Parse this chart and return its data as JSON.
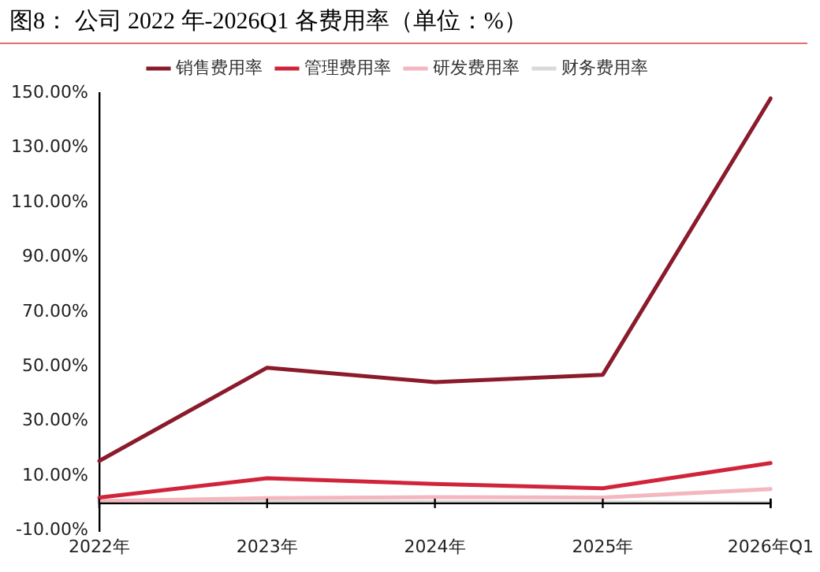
{
  "chart_data": {
    "type": "line",
    "title": "图8：  公司 2022 年-2026Q1 各费用率（单位：%）",
    "categories": [
      "2022年",
      "2023年",
      "2024年",
      "2025年",
      "2026年Q1"
    ],
    "series": [
      {
        "name": "销售费用率",
        "color": "#8b1a2b",
        "values": [
          15.5,
          49.6,
          44.3,
          47.0,
          148.0
        ]
      },
      {
        "name": "管理费用率",
        "color": "#d0243a",
        "values": [
          2.1,
          9.2,
          7.1,
          5.5,
          14.7
        ]
      },
      {
        "name": "研发费用率",
        "color": "#f4b6bf",
        "values": [
          0.8,
          1.9,
          2.3,
          2.1,
          5.2
        ]
      },
      {
        "name": "财务费用率",
        "color": "#d9d9d9",
        "values": [
          0.3,
          0.5,
          0.5,
          0.3,
          0.2
        ]
      }
    ],
    "ylim": [
      -10,
      150
    ],
    "yticks": [
      {
        "value": -10,
        "label": "-10.00%"
      },
      {
        "value": 10,
        "label": "10.00%"
      },
      {
        "value": 30,
        "label": "30.00%"
      },
      {
        "value": 50,
        "label": "50.00%"
      },
      {
        "value": 70,
        "label": "70.00%"
      },
      {
        "value": 90,
        "label": "90.00%"
      },
      {
        "value": 110,
        "label": "110.00%"
      },
      {
        "value": 130,
        "label": "130.00%"
      },
      {
        "value": 150,
        "label": "150.00%"
      }
    ],
    "grid": false,
    "legend": "top",
    "marker": "none",
    "line_style": "solid"
  }
}
